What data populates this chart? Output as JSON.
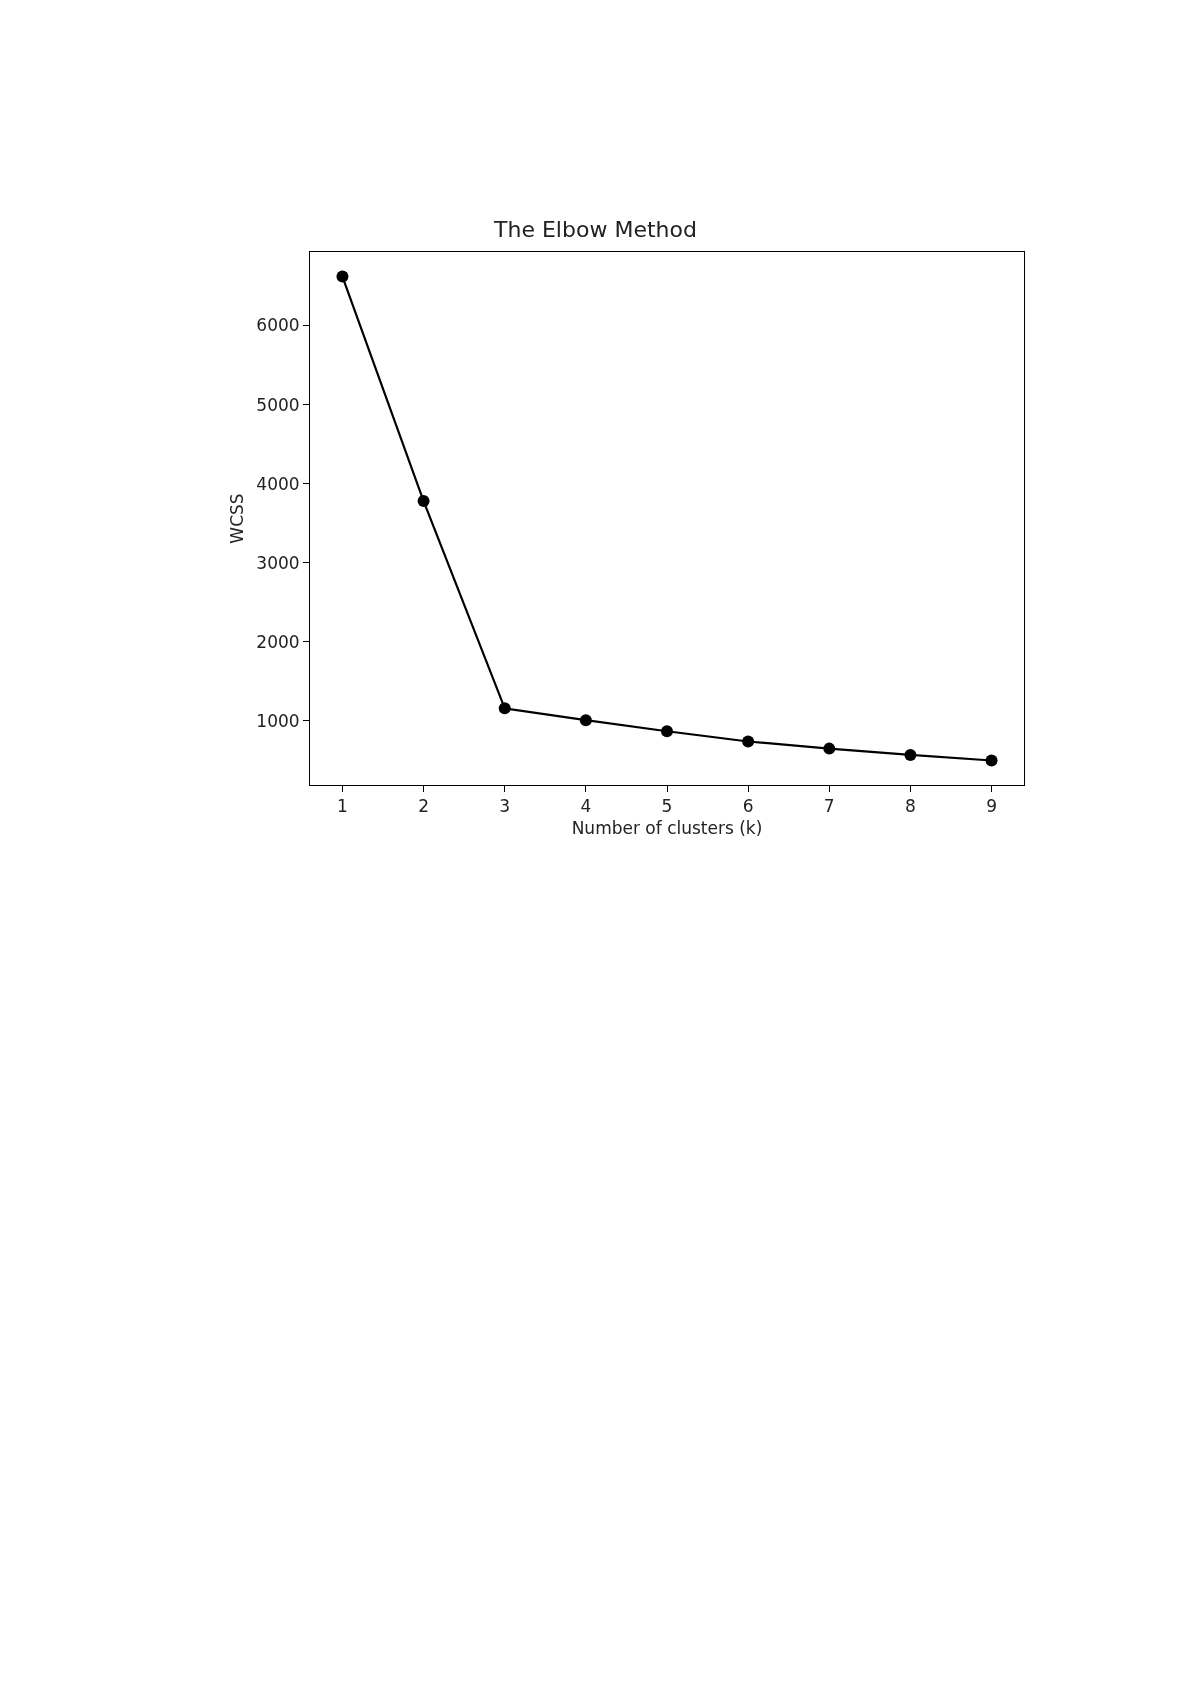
{
  "chart_data": {
    "type": "line",
    "title": "The Elbow Method",
    "xlabel": "Number of clusters (k)",
    "ylabel": "WCSS",
    "x": [
      1,
      2,
      3,
      4,
      5,
      6,
      7,
      8,
      9
    ],
    "series": [
      {
        "color": "#000000",
        "values": [
          6620,
          3780,
          1160,
          1010,
          870,
          740,
          650,
          570,
          500
        ]
      }
    ],
    "xlim": [
      0.6,
      9.4
    ],
    "xticks": [
      1,
      2,
      3,
      4,
      5,
      6,
      7,
      8,
      9
    ],
    "ylim": [
      190,
      6930
    ],
    "yticks": [
      1000,
      2000,
      3000,
      4000,
      5000,
      6000
    ],
    "marker": "circle",
    "line_style": "solid"
  }
}
